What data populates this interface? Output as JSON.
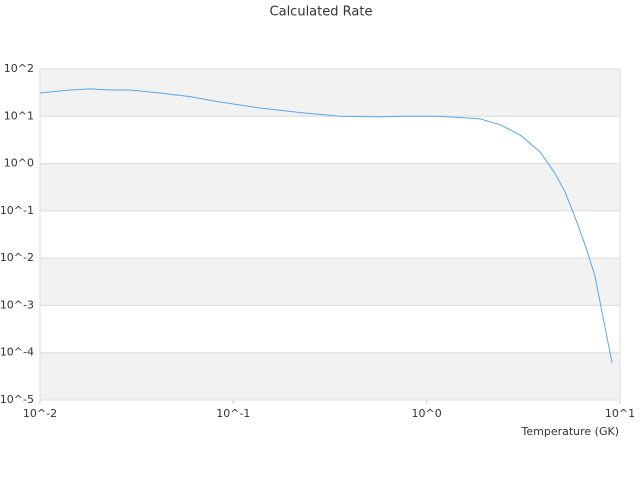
{
  "chart_data": {
    "type": "line",
    "title": "Calculated Rate",
    "xlabel": "Temperature (GK)",
    "xlog": true,
    "ylog": true,
    "grid": true,
    "xlim": [
      0.01,
      10
    ],
    "ylim": [
      1e-05,
      100
    ],
    "xticks": [
      {
        "value": 0.01,
        "label": "10^-2"
      },
      {
        "value": 0.1,
        "label": "10^-1"
      },
      {
        "value": 1,
        "label": "10^0"
      },
      {
        "value": 10,
        "label": "10^1"
      }
    ],
    "yticks": [
      {
        "value": 1e-05,
        "label": "10^-5"
      },
      {
        "value": 0.0001,
        "label": "10^-4"
      },
      {
        "value": 0.001,
        "label": "10^-3"
      },
      {
        "value": 0.01,
        "label": "10^-2"
      },
      {
        "value": 0.1,
        "label": "10^-1"
      },
      {
        "value": 1,
        "label": "10^0"
      },
      {
        "value": 10,
        "label": "10^1"
      },
      {
        "value": 100,
        "label": "10^2"
      }
    ],
    "series": [
      {
        "color": "#5aa7e8",
        "x": [
          0.01,
          0.0143,
          0.0181,
          0.023,
          0.0292,
          0.0417,
          0.0597,
          0.085,
          0.137,
          0.22,
          0.357,
          0.57,
          0.73,
          1.17,
          1.89,
          2.4,
          3.05,
          3.86,
          4.6,
          5.2,
          5.8,
          6.6,
          7.4,
          9.1
        ],
        "values": [
          31,
          36,
          38,
          36,
          36,
          31,
          26,
          20,
          15,
          12,
          10,
          9.7,
          10,
          10,
          8.8,
          6.6,
          4.0,
          1.76,
          0.63,
          0.25,
          0.081,
          0.019,
          0.0044,
          6e-05
        ]
      }
    ]
  }
}
